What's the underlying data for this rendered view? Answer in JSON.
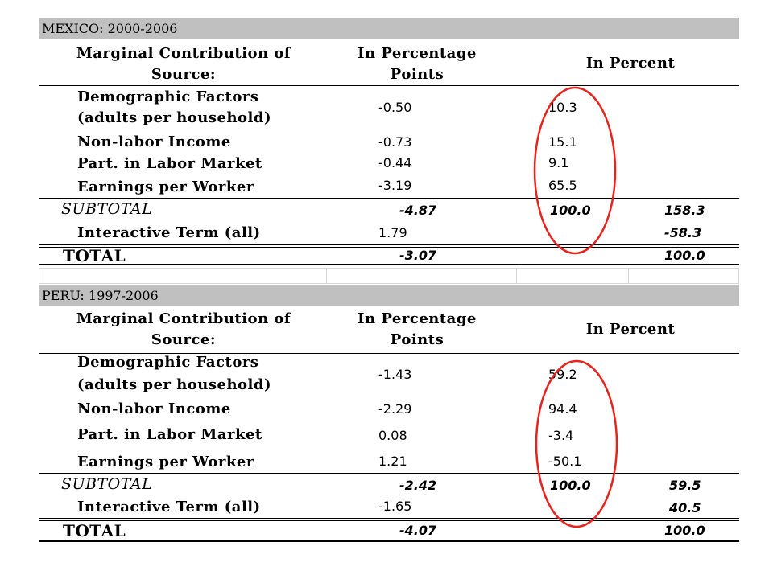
{
  "mexico": {
    "title": "MEXICO: 2000-2006",
    "col1_header": [
      "Marginal Contribution of",
      "Source:"
    ],
    "col2_header": [
      "In Percentage",
      "Points"
    ],
    "col3_header": "In Percent",
    "rows": [
      {
        "label": [
          "Demographic Factors",
          "(adults per household)"
        ],
        "points": "-0.50",
        "pct": "10.3"
      },
      {
        "label": [
          "Non-labor Income"
        ],
        "points": "-0.73",
        "pct": "15.1"
      },
      {
        "label": [
          "Part. in Labor Market"
        ],
        "points": "-0.44",
        "pct": "9.1"
      },
      {
        "label": [
          "Earnings per Worker"
        ],
        "points": "-3.19",
        "pct": "65.5"
      }
    ],
    "subtotal": {
      "label": "SUBTOTAL",
      "points": "-4.87",
      "pct": "100.0",
      "pct_total": "158.3"
    },
    "interactive": {
      "label": "Interactive Term (all)",
      "points": "1.79",
      "pct_total": "-58.3"
    },
    "total": {
      "label": "TOTAL",
      "points": "-3.07",
      "pct_total": "100.0"
    }
  },
  "peru": {
    "title": "PERU: 1997-2006",
    "col1_header": [
      "Marginal Contribution of",
      "Source:"
    ],
    "col2_header": [
      "In Percentage",
      "Points"
    ],
    "col3_header": "In Percent",
    "rows": [
      {
        "label": [
          "Demographic Factors",
          "(adults per household)"
        ],
        "points": "-1.43",
        "pct": "59.2"
      },
      {
        "label": [
          "Non-labor Income"
        ],
        "points": "-2.29",
        "pct": "94.4"
      },
      {
        "label": [
          "Part. in Labor Market"
        ],
        "points": "0.08",
        "pct": "-3.4"
      },
      {
        "label": [
          "Earnings per Worker"
        ],
        "points": "1.21",
        "pct": "-50.1"
      }
    ],
    "subtotal": {
      "label": "SUBTOTAL",
      "points": "-2.42",
      "pct": "100.0",
      "pct_total": "59.5"
    },
    "interactive": {
      "label": "Interactive Term (all)",
      "points": "-1.65",
      "pct_total": "40.5"
    },
    "total": {
      "label": "TOTAL",
      "points": "-4.07",
      "pct_total": "100.0"
    }
  },
  "colors": {
    "oval": "#e8231c",
    "title_bg": "#c0c0c0"
  }
}
